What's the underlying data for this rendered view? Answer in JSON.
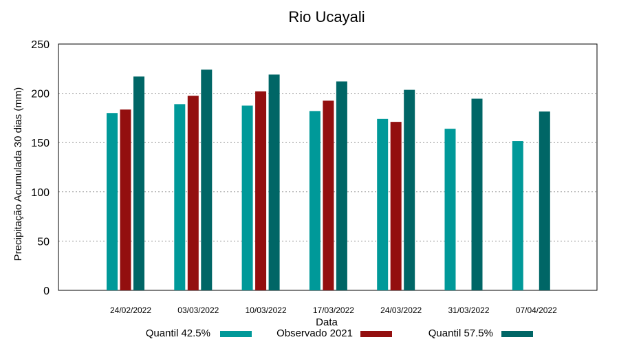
{
  "chart_data": {
    "type": "bar",
    "title": "Rio Ucayali",
    "xlabel": "Data",
    "ylabel": "Precipitação Acumulada 30 dias (mm)",
    "ylim": [
      0,
      250
    ],
    "yticks": [
      0,
      50,
      100,
      150,
      200,
      250
    ],
    "grid": true,
    "legend_position": "bottom",
    "categories": [
      "24/02/2022",
      "03/03/2022",
      "10/03/2022",
      "17/03/2022",
      "24/03/2022",
      "31/03/2022",
      "07/04/2022"
    ],
    "series": [
      {
        "name": "Quantil 42.5%",
        "color": "#009999",
        "values": [
          180,
          189,
          187.5,
          182,
          174,
          164,
          151.5
        ]
      },
      {
        "name": "Observado 2021",
        "color": "#930f0f",
        "values": [
          183.5,
          197.5,
          202,
          192.5,
          171,
          null,
          null
        ]
      },
      {
        "name": "Quantil 57.5%",
        "color": "#006666",
        "values": [
          217,
          224,
          219,
          212,
          203.5,
          194.5,
          181.5
        ]
      }
    ]
  }
}
